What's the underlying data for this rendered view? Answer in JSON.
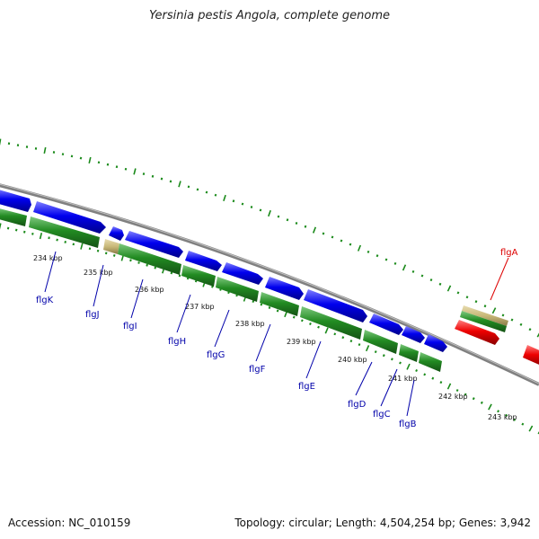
{
  "title": "Yersinia pestis Angola, complete genome",
  "footer": {
    "accession": "Accession: NC_010159",
    "summary": "Topology: circular; Length: 4,504,254 bp; Genes: 3,942"
  },
  "colors": {
    "forward_gene": "#0000ee",
    "cds": "#228b22",
    "highlight_gene": "#ee0000",
    "misc_feature": "#c8b878",
    "backbone": "#808080",
    "ticks": "#1a8a1a",
    "label_blue": "#0000aa",
    "label_red": "#dd0000"
  },
  "scale_labels": [
    "234 kbp",
    "235 kbp",
    "236 kbp",
    "237 kbp",
    "238 kbp",
    "239 kbp",
    "240 kbp",
    "241 kbp",
    "242 kbp",
    "243 kbp"
  ],
  "gene_labels": [
    {
      "name": "flgK",
      "color": "blue"
    },
    {
      "name": "flgJ",
      "color": "blue"
    },
    {
      "name": "flgI",
      "color": "blue"
    },
    {
      "name": "flgH",
      "color": "blue"
    },
    {
      "name": "flgG",
      "color": "blue"
    },
    {
      "name": "flgF",
      "color": "blue"
    },
    {
      "name": "flgE",
      "color": "blue"
    },
    {
      "name": "flgD",
      "color": "blue"
    },
    {
      "name": "flgC",
      "color": "blue"
    },
    {
      "name": "flgB",
      "color": "blue"
    },
    {
      "name": "flgA",
      "color": "red"
    }
  ]
}
